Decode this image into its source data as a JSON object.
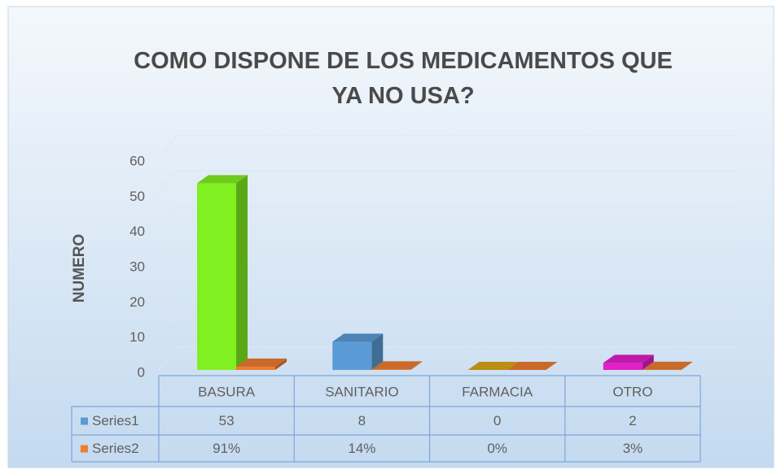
{
  "chart_data": {
    "type": "bar3d",
    "title": "COMO DISPONE DE LOS MEDICAMENTOS QUE YA NO USA?",
    "y_label": "NUMERO",
    "categories": [
      "BASURA",
      "SANITARIO",
      "FARMACIA",
      "OTRO"
    ],
    "series": [
      {
        "name": "Series1",
        "color": "#5b9bd5",
        "point_colors": [
          "#80f020",
          "#5b9bd5",
          "#d8a818",
          "#e020c8"
        ],
        "values": [
          53,
          8,
          0,
          2
        ]
      },
      {
        "name": "Series2",
        "color": "#ed7d31",
        "values": [
          0.91,
          0.14,
          0,
          0.03
        ],
        "value_labels": [
          "91%",
          "14%",
          "0%",
          "3%"
        ]
      }
    ],
    "ylim": [
      0,
      60
    ],
    "yticks": [
      0,
      10,
      20,
      30,
      40,
      50,
      60
    ],
    "grid": true,
    "data_table": true
  }
}
